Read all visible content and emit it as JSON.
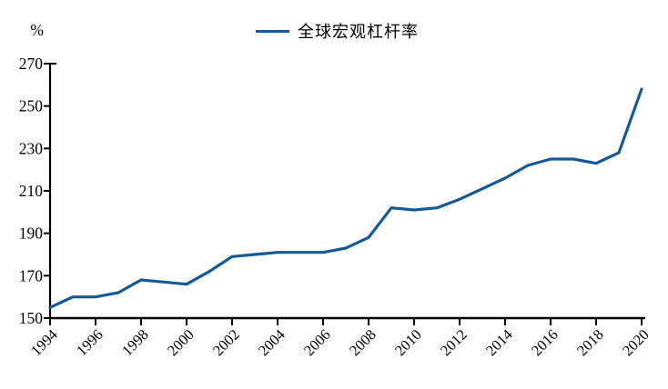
{
  "chart_data": {
    "type": "line",
    "title": "",
    "unit_label": "%",
    "ylabel": "%",
    "xlabel": "",
    "grid": false,
    "legend_position": "top-center",
    "line_color": "#155a96",
    "axis_color": "#000000",
    "xlim": [
      1994,
      2020
    ],
    "ylim": [
      150,
      270
    ],
    "y_ticks": [
      150,
      170,
      190,
      210,
      230,
      250,
      270
    ],
    "x_tick_labels": [
      "1994",
      "1996",
      "1998",
      "2000",
      "2002",
      "2004",
      "2006",
      "2008",
      "2010",
      "2012",
      "2014",
      "2016",
      "2018",
      "2020"
    ],
    "x": [
      1994,
      1995,
      1996,
      1997,
      1998,
      1999,
      2000,
      2001,
      2002,
      2003,
      2004,
      2005,
      2006,
      2007,
      2008,
      2009,
      2010,
      2011,
      2012,
      2013,
      2014,
      2015,
      2016,
      2017,
      2018,
      2019,
      2020
    ],
    "series": [
      {
        "name": "全球宏观杠杆率",
        "values": [
          155,
          160,
          160,
          162,
          168,
          167,
          166,
          172,
          179,
          180,
          181,
          181,
          181,
          183,
          188,
          202,
          201,
          202,
          206,
          211,
          216,
          222,
          225,
          225,
          223,
          228,
          258
        ]
      }
    ]
  }
}
